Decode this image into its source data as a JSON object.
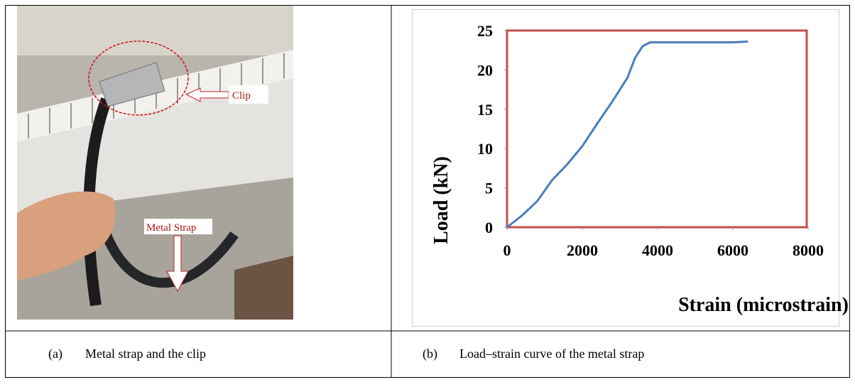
{
  "photo": {
    "labels": [
      "Clip",
      "Metal Strap"
    ],
    "caption_tag": "(a)",
    "caption": "Metal strap and the clip"
  },
  "chart_data": {
    "type": "line",
    "caption_tag": "(b)",
    "caption": "Load–strain curve of the metal strap",
    "x_label": "Strain (microstrain)",
    "y_label": "Load (kN)",
    "x": [
      0,
      400,
      800,
      1200,
      1600,
      2000,
      2400,
      2800,
      3200,
      3400,
      3600,
      3800,
      4500,
      5500,
      6000,
      6400
    ],
    "values": [
      0,
      1.5,
      3.3,
      6,
      8,
      10.3,
      13.2,
      16,
      19,
      21.5,
      23,
      23.5,
      23.5,
      23.5,
      23.5,
      23.6
    ],
    "color": "#4a7ebb",
    "frame_color": "#c0504d",
    "xlim": [
      0,
      8000
    ],
    "ylim": [
      0,
      25
    ],
    "xticks": [
      0,
      2000,
      4000,
      6000,
      8000
    ],
    "yticks": [
      0,
      5,
      10,
      15,
      20,
      25
    ]
  }
}
